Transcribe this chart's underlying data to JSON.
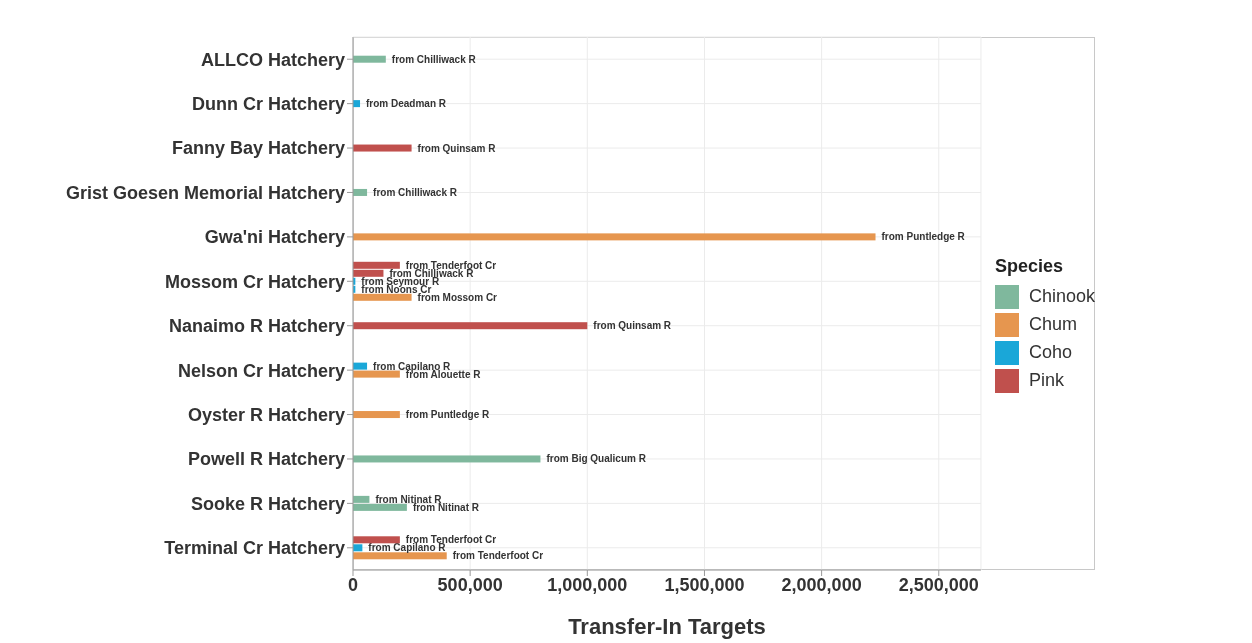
{
  "chart_data": {
    "type": "bar",
    "orientation": "horizontal",
    "xlabel": "Transfer-In Targets",
    "legend_title": "Species",
    "legend": "right",
    "grid": true,
    "categories": [
      "ALLCO Hatchery",
      "Dunn Cr Hatchery",
      "Fanny Bay Hatchery",
      "Grist Goesen Memorial Hatchery",
      "Gwa'ni Hatchery",
      "Mossom Cr Hatchery",
      "Nanaimo R Hatchery",
      "Nelson Cr Hatchery",
      "Oyster R Hatchery",
      "Powell R Hatchery",
      "Sooke R Hatchery",
      "Terminal Cr Hatchery"
    ],
    "xlim": [
      0,
      2680000
    ],
    "xticks": [
      {
        "value": 0,
        "label": "0"
      },
      {
        "value": 500000,
        "label": "500,000"
      },
      {
        "value": 1000000,
        "label": "1,000,000"
      },
      {
        "value": 1500000,
        "label": "1,500,000"
      },
      {
        "value": 2000000,
        "label": "2,000,000"
      },
      {
        "value": 2500000,
        "label": "2,500,000"
      }
    ],
    "series": [
      {
        "name": "Chinook",
        "color": "#7fb89d",
        "values": [
          140000,
          null,
          null,
          60000,
          null,
          null,
          null,
          null,
          null,
          800000,
          230000,
          null
        ],
        "value_labels": [
          "from Chilliwack R",
          null,
          null,
          "from Chilliwack R",
          null,
          null,
          null,
          null,
          null,
          "from Big Qualicum R",
          "from Nitinat R",
          null
        ]
      },
      {
        "color": "#7fb89d",
        "values": [
          null,
          null,
          null,
          null,
          null,
          null,
          null,
          null,
          null,
          null,
          70000,
          null
        ],
        "value_labels": [
          null,
          null,
          null,
          null,
          null,
          null,
          null,
          null,
          null,
          null,
          "from Nitinat R",
          null
        ]
      },
      {
        "name": "Chum",
        "color": "#e6964f",
        "values": [
          null,
          null,
          null,
          null,
          2230000,
          250000,
          null,
          200000,
          200000,
          null,
          null,
          400000
        ],
        "value_labels": [
          null,
          null,
          null,
          null,
          "from Puntledge R",
          "from Mossom Cr",
          null,
          "from Alouette R",
          "from Puntledge R",
          null,
          null,
          "from Tenderfoot Cr"
        ]
      },
      {
        "name": "Coho",
        "color": "#1aa7d8",
        "values": [
          null,
          30000,
          null,
          null,
          null,
          10000,
          null,
          60000,
          null,
          null,
          null,
          40000
        ],
        "value_labels": [
          null,
          "from Deadman R",
          null,
          null,
          null,
          "from Noons Cr",
          null,
          "from Capilano R",
          null,
          null,
          null,
          "from Capilano R"
        ]
      },
      {
        "color": "#1aa7d8",
        "values": [
          null,
          null,
          null,
          null,
          null,
          10000,
          null,
          null,
          null,
          null,
          null,
          null
        ],
        "value_labels": [
          null,
          null,
          null,
          null,
          null,
          "from Seymour R",
          null,
          null,
          null,
          null,
          null,
          null
        ]
      },
      {
        "name": "Pink",
        "color": "#c0504d",
        "values": [
          null,
          null,
          250000,
          null,
          null,
          130000,
          1000000,
          null,
          null,
          null,
          null,
          200000
        ],
        "value_labels": [
          null,
          null,
          "from Quinsam R",
          null,
          null,
          "from Chilliwack R",
          "from Quinsam R",
          null,
          null,
          null,
          null,
          "from Tenderfoot Cr"
        ]
      },
      {
        "color": "#c0504d",
        "values": [
          null,
          null,
          null,
          null,
          null,
          200000,
          null,
          null,
          null,
          null,
          null,
          null
        ],
        "value_labels": [
          null,
          null,
          null,
          null,
          null,
          "from Tenderfoot Cr",
          null,
          null,
          null,
          null,
          null,
          null
        ]
      }
    ]
  }
}
